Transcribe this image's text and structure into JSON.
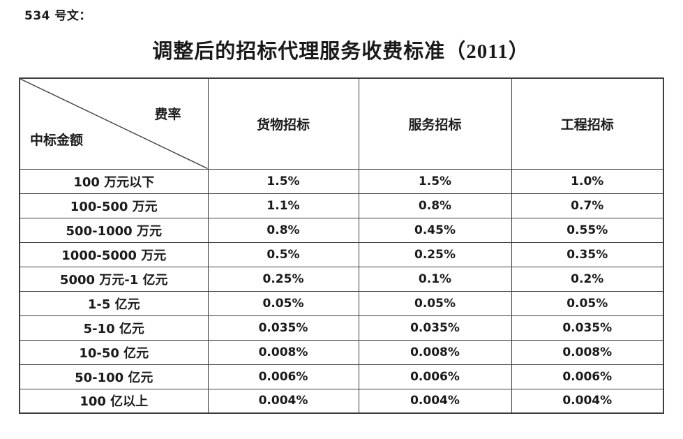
{
  "doc_label": "534 号文：",
  "title": "调整后的招标代理服务收费标准（2011）",
  "table": {
    "corner": {
      "top_right": "费率",
      "bottom_left": "中标金额"
    },
    "columns": [
      "货物招标",
      "服务招标",
      "工程招标"
    ],
    "rows": [
      {
        "label": "100 万元以下",
        "values": [
          "1.5%",
          "1.5%",
          "1.0%"
        ]
      },
      {
        "label": "100-500 万元",
        "values": [
          "1.1%",
          "0.8%",
          "0.7%"
        ]
      },
      {
        "label": "500-1000 万元",
        "values": [
          "0.8%",
          "0.45%",
          "0.55%"
        ]
      },
      {
        "label": "1000-5000 万元",
        "values": [
          "0.5%",
          "0.25%",
          "0.35%"
        ]
      },
      {
        "label": "5000 万元-1 亿元",
        "values": [
          "0.25%",
          "0.1%",
          "0.2%"
        ]
      },
      {
        "label": "1-5 亿元",
        "values": [
          "0.05%",
          "0.05%",
          "0.05%"
        ]
      },
      {
        "label": "5-10 亿元",
        "values": [
          "0.035%",
          "0.035%",
          "0.035%"
        ]
      },
      {
        "label": "10-50 亿元",
        "values": [
          "0.008%",
          "0.008%",
          "0.008%"
        ]
      },
      {
        "label": "50-100 亿元",
        "values": [
          "0.006%",
          "0.006%",
          "0.006%"
        ]
      },
      {
        "label": "100 亿以上",
        "values": [
          "0.004%",
          "0.004%",
          "0.004%"
        ]
      }
    ]
  },
  "colors": {
    "text": "#1a1a1a",
    "border": "#3d3d3d",
    "background": "#ffffff"
  }
}
